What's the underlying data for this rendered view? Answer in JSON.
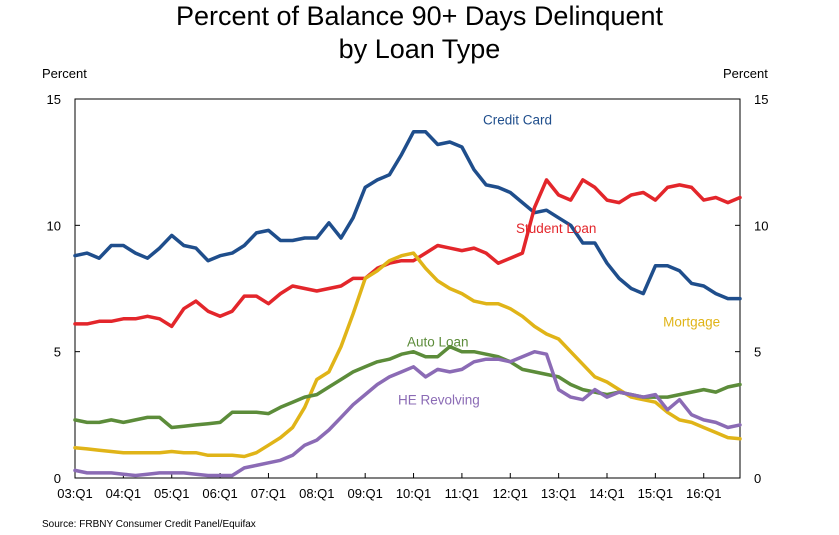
{
  "chart_data": {
    "type": "line",
    "title": "Percent of Balance 90+ Days Delinquent",
    "subtitle": "by Loan Type",
    "ylabel_left": "Percent",
    "ylabel_right": "Percent",
    "ylim": [
      0,
      15
    ],
    "yticks": [
      "0",
      "5",
      "10",
      "15"
    ],
    "x_ticks": [
      "03:Q1",
      "04:Q1",
      "05:Q1",
      "06:Q1",
      "07:Q1",
      "08:Q1",
      "09:Q1",
      "10:Q1",
      "11:Q1",
      "12:Q1",
      "13:Q1",
      "14:Q1",
      "15:Q1",
      "16:Q1"
    ],
    "source": "Source: FRBNY Consumer Credit Panel/Equifax",
    "grid": false,
    "series": [
      {
        "name": "Credit Card",
        "color": "#1f4e8c",
        "label_x": 36.6,
        "label_y": 14.0,
        "values": [
          8.8,
          8.9,
          8.7,
          9.2,
          9.2,
          8.9,
          8.7,
          9.1,
          9.6,
          9.2,
          9.1,
          8.6,
          8.8,
          8.9,
          9.2,
          9.7,
          9.8,
          9.4,
          9.4,
          9.5,
          9.5,
          10.1,
          9.5,
          10.3,
          11.5,
          11.8,
          12.0,
          12.8,
          13.7,
          13.7,
          13.2,
          13.3,
          13.1,
          12.2,
          11.6,
          11.5,
          11.3,
          10.9,
          10.5,
          10.6,
          10.3,
          10.0,
          9.3,
          9.3,
          8.5,
          7.9,
          7.5,
          7.3,
          8.4,
          8.4,
          8.2,
          7.7,
          7.6,
          7.3,
          7.1,
          7.1
        ]
      },
      {
        "name": "Student Loan",
        "color": "#e3262b",
        "label_x": 39.8,
        "label_y": 9.7,
        "values": [
          6.1,
          6.1,
          6.2,
          6.2,
          6.3,
          6.3,
          6.4,
          6.3,
          6.0,
          6.7,
          7.0,
          6.6,
          6.4,
          6.6,
          7.2,
          7.2,
          6.9,
          7.3,
          7.6,
          7.5,
          7.4,
          7.5,
          7.6,
          7.9,
          7.9,
          8.3,
          8.5,
          8.6,
          8.6,
          8.9,
          9.2,
          9.1,
          9.0,
          9.1,
          8.9,
          8.5,
          8.7,
          8.9,
          10.7,
          11.8,
          11.2,
          11.0,
          11.8,
          11.5,
          11.0,
          10.9,
          11.2,
          11.3,
          11.0,
          11.5,
          11.6,
          11.5,
          11.0,
          11.1,
          10.9,
          11.1
        ]
      },
      {
        "name": "Mortgage",
        "color": "#e0b418",
        "label_x": 51.0,
        "label_y": 6.0,
        "values": [
          1.2,
          1.15,
          1.1,
          1.05,
          1.0,
          1.0,
          1.0,
          1.0,
          1.05,
          1.0,
          1.0,
          0.9,
          0.9,
          0.9,
          0.85,
          1.0,
          1.3,
          1.6,
          2.0,
          2.8,
          3.9,
          4.2,
          5.2,
          6.5,
          7.9,
          8.2,
          8.6,
          8.8,
          8.9,
          8.3,
          7.8,
          7.5,
          7.3,
          7.0,
          6.9,
          6.9,
          6.7,
          6.4,
          6.0,
          5.7,
          5.5,
          5.0,
          4.5,
          4.0,
          3.8,
          3.5,
          3.2,
          3.1,
          3.0,
          2.6,
          2.3,
          2.2,
          2.0,
          1.8,
          1.6,
          1.55
        ]
      },
      {
        "name": "Auto Loan",
        "color": "#5c8c3a",
        "label_x": 30.0,
        "label_y": 5.2,
        "values": [
          2.3,
          2.2,
          2.2,
          2.3,
          2.2,
          2.3,
          2.4,
          2.4,
          2.0,
          2.05,
          2.1,
          2.15,
          2.2,
          2.6,
          2.6,
          2.6,
          2.55,
          2.8,
          3.0,
          3.2,
          3.3,
          3.6,
          3.9,
          4.2,
          4.4,
          4.6,
          4.7,
          4.9,
          5.0,
          4.8,
          4.8,
          5.2,
          5.0,
          5.0,
          4.9,
          4.8,
          4.6,
          4.3,
          4.2,
          4.1,
          4.0,
          3.7,
          3.5,
          3.4,
          3.3,
          3.4,
          3.3,
          3.2,
          3.2,
          3.2,
          3.3,
          3.4,
          3.5,
          3.4,
          3.6,
          3.7
        ]
      },
      {
        "name": "HE Revolving",
        "color": "#8b6bb5",
        "label_x": 30.1,
        "label_y": 2.9,
        "values": [
          0.3,
          0.2,
          0.2,
          0.2,
          0.15,
          0.1,
          0.15,
          0.2,
          0.2,
          0.2,
          0.15,
          0.1,
          0.1,
          0.1,
          0.4,
          0.5,
          0.6,
          0.7,
          0.9,
          1.3,
          1.5,
          1.9,
          2.4,
          2.9,
          3.3,
          3.7,
          4.0,
          4.2,
          4.4,
          4.0,
          4.3,
          4.2,
          4.3,
          4.6,
          4.7,
          4.7,
          4.6,
          4.8,
          5.0,
          4.9,
          3.5,
          3.2,
          3.1,
          3.5,
          3.2,
          3.4,
          3.3,
          3.2,
          3.3,
          2.7,
          3.1,
          2.5,
          2.3,
          2.2,
          2.0,
          2.1
        ]
      }
    ]
  }
}
